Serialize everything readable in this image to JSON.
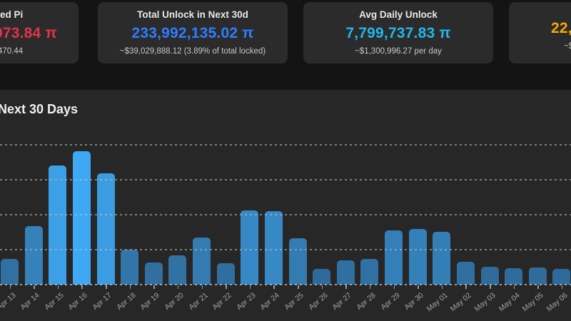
{
  "cards": [
    {
      "title": "ed Pi",
      "value": "073.84 π",
      "sub": "470.44",
      "value_color": "#e0344a"
    },
    {
      "title": "Total Unlock in Next 30d",
      "value": "233,992,135.02 π",
      "sub": "~$39,029,888.12 (3.89% of total locked)",
      "value_color": "#2e7dff"
    },
    {
      "title": "Avg Daily Unlock",
      "value": "7,799,737.83 π",
      "sub": "~$1,300,996.27 per day",
      "value_color": "#25b5ea"
    },
    {
      "title": "",
      "value": "22,",
      "sub": "~$",
      "value_color": "#f0ab08"
    }
  ],
  "chart": {
    "title": "Next 30 Days"
  },
  "chart_data": {
    "type": "bar",
    "title": "Next 30 Days",
    "categories": [
      "Apr 13",
      "Apr 14",
      "Apr 15",
      "Apr 16",
      "Apr 17",
      "Apr 18",
      "Apr 19",
      "Apr 20",
      "Apr 21",
      "Apr 22",
      "Apr 23",
      "Apr 24",
      "Apr 25",
      "Apr 26",
      "Apr 27",
      "Apr 28",
      "Apr 29",
      "Apr 30",
      "May 01",
      "May 02",
      "May 03",
      "May 04",
      "May 05",
      "May 06"
    ],
    "values": [
      3.7,
      8.4,
      17.0,
      19.1,
      15.9,
      5.0,
      3.2,
      4.2,
      6.7,
      3.1,
      10.6,
      10.5,
      6.6,
      2.2,
      3.5,
      3.7,
      7.8,
      8.0,
      7.6,
      3.3,
      2.6,
      2.3,
      2.4,
      2.2
    ],
    "unit": "million π (estimated from gridlines)",
    "xlabel": "",
    "ylabel": "",
    "ylim": [
      0,
      20
    ],
    "gridline_values": [
      5,
      10,
      15,
      20
    ],
    "grid": "dashed-horizontal",
    "legend": "none",
    "bar_color_low": "#2f6b9a",
    "bar_color_high": "#3ea8f2"
  }
}
